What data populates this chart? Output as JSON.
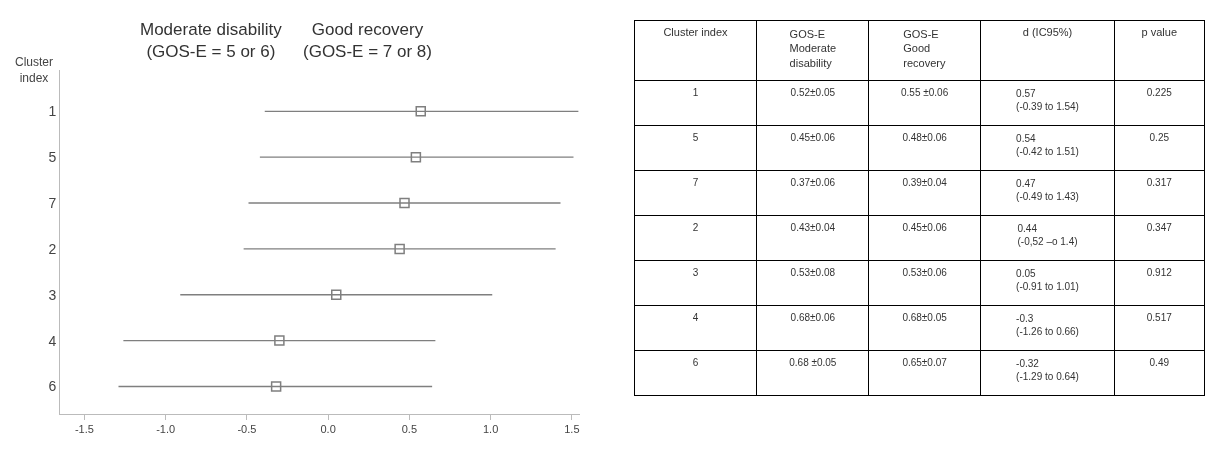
{
  "chart_data": [
    {
      "type": "scatter",
      "orientation": "horizontal",
      "ylabel": "Cluster\nindex",
      "annotations": [
        "Moderate disability\n(GOS-E = 5 or 6)",
        "Good recovery\n(GOS-E = 7 or 8)"
      ],
      "categories": [
        "1",
        "5",
        "7",
        "2",
        "3",
        "4",
        "6"
      ],
      "color": "#7f7f7f",
      "values": [
        0.57,
        0.54,
        0.47,
        0.44,
        0.05,
        -0.3,
        -0.32
      ],
      "errors": [
        [
          -0.39,
          1.54
        ],
        [
          -0.42,
          1.51
        ],
        [
          -0.49,
          1.43
        ],
        [
          -0.52,
          1.4
        ],
        [
          -0.91,
          1.01
        ],
        [
          -1.26,
          0.66
        ],
        [
          -1.29,
          0.64
        ]
      ],
      "marker": "square",
      "xlim": [
        -1.65,
        1.55
      ],
      "xticks": [
        {
          "value": -1.5,
          "label": "-1.5"
        },
        {
          "value": -1,
          "label": "-1.0"
        },
        {
          "value": -0.5,
          "label": "-0.5"
        },
        {
          "value": 0,
          "label": "0.0"
        },
        {
          "value": 0.5,
          "label": "0.5"
        },
        {
          "value": 1,
          "label": "1.0"
        },
        1.5
      ]
    },
    {
      "type": "other",
      "categories": [
        "Cluster index",
        "GOS-E\nModerate\ndisability",
        "GOS-E\nGood\nrecovery",
        "d (IC95%)",
        "p value"
      ],
      "cell_labels": [
        [
          "1",
          "0.52±0.05",
          "0.55 ±0.06",
          "0.57\n(-0.39 to 1.54)",
          "0.225"
        ],
        [
          "5",
          "0.45±0.06",
          "0.48±0.06",
          "0.54\n(-0.42 to 1.51)",
          "0.25"
        ],
        [
          "7",
          "0.37±0.06",
          "0.39±0.04",
          "0.47\n(-0.49 to 1.43)",
          "0.317"
        ],
        [
          "2",
          "0.43±0.04",
          "0.45±0.06",
          "0.44\n(-0,52 –o 1.4)",
          "0.347"
        ],
        [
          "3",
          "0.53±0.08",
          "0.53±0.06",
          "0.05\n(-0.91 to 1.01)",
          "0.912"
        ],
        [
          "4",
          "0.68±0.06",
          "0.68±0.05",
          "-0.3\n(-1.26 to 0.66)",
          "0.517"
        ],
        [
          "6",
          "0.68 ±0.05",
          "0.65±0.07",
          "-0.32\n(-1.29 to 0.64)",
          "0.49"
        ]
      ]
    }
  ]
}
